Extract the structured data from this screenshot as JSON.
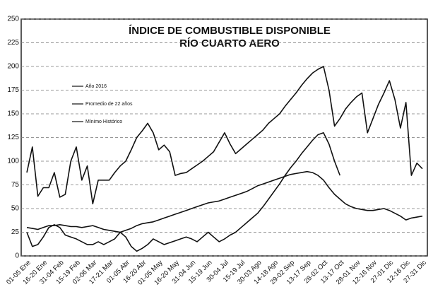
{
  "chart_data": {
    "type": "line",
    "title": "ÍNDICE DE COMBUSTIBLE DISPONIBLE",
    "subtitle": "RÍO CUARTO AERO",
    "categories": [
      "01-05 Ene",
      null,
      null,
      "16-20 Ene",
      null,
      null,
      "31-04 Feb",
      null,
      null,
      "15-19 Feb",
      null,
      null,
      "02-06 Mar",
      null,
      null,
      "17-21 Mar",
      null,
      null,
      "01-05 Abr",
      null,
      null,
      "16-20 Abr",
      null,
      null,
      "01-05 May",
      null,
      null,
      "16-20 May",
      null,
      null,
      "31-04 Jun",
      null,
      null,
      "15-19 Jun",
      null,
      null,
      "30-04 Jul",
      null,
      null,
      "15-19 Jul",
      null,
      null,
      "30-03 Ago",
      null,
      null,
      "14-18 Ago",
      null,
      null,
      "29-02 Sep",
      null,
      null,
      "13-17 Sep",
      null,
      null,
      "28-02 Oct",
      null,
      null,
      "13-17 Oct",
      null,
      null,
      "28-01 Nov",
      null,
      null,
      "12-16 Nov",
      null,
      null,
      "27-01 Dic",
      null,
      null,
      "12-16 Dic",
      null,
      null,
      "27-31 Dic"
    ],
    "series": [
      {
        "name": "Año 2016",
        "color": "#111111",
        "values": [
          88,
          115,
          63,
          72,
          72,
          88,
          62,
          65,
          100,
          115,
          80,
          95,
          55,
          80,
          80,
          80,
          88,
          95,
          100,
          112,
          125,
          132,
          140,
          130,
          112,
          117,
          110,
          85,
          87,
          88,
          92,
          96,
          100,
          105,
          110,
          120,
          130,
          118,
          108,
          113,
          118,
          123,
          128,
          133,
          140,
          145,
          150,
          158,
          165,
          172,
          180,
          187,
          193,
          197,
          200,
          175,
          137,
          145,
          155,
          162,
          168,
          172,
          130,
          145,
          160,
          172,
          185,
          165,
          135,
          162,
          85,
          98,
          92
        ]
      },
      {
        "name": "Promedio de 22 años",
        "color": "#111111",
        "values": [
          30,
          29,
          28,
          30,
          32,
          32,
          33,
          32,
          31,
          31,
          30,
          31,
          32,
          30,
          28,
          27,
          26,
          25,
          27,
          29,
          32,
          34,
          35,
          36,
          38,
          40,
          42,
          44,
          46,
          48,
          50,
          52,
          54,
          56,
          57,
          58,
          60,
          62,
          64,
          66,
          68,
          71,
          74,
          76,
          78,
          80,
          82,
          84,
          86,
          87,
          88,
          89,
          88,
          85,
          80,
          72,
          65,
          60,
          55,
          52,
          50,
          49,
          48,
          48,
          49,
          50,
          48,
          45,
          42,
          38,
          40,
          41,
          42
        ]
      },
      {
        "name": "Mínimo Histórico",
        "color": "#111111",
        "values": [
          25,
          10,
          12,
          20,
          30,
          33,
          30,
          22,
          20,
          18,
          15,
          12,
          12,
          15,
          12,
          15,
          18,
          25,
          20,
          10,
          5,
          8,
          12,
          18,
          15,
          12,
          14,
          16,
          18,
          20,
          18,
          15,
          20,
          25,
          20,
          15,
          18,
          22,
          25,
          30,
          35,
          40,
          45,
          52,
          60,
          68,
          76,
          85,
          93,
          100,
          108,
          115,
          122,
          128,
          130,
          118,
          100,
          85,
          null,
          null,
          null,
          null,
          null,
          null,
          null,
          null,
          null,
          null,
          null,
          null,
          null,
          null,
          null
        ]
      }
    ],
    "ylim": [
      0,
      250
    ],
    "yticks": [
      0,
      25,
      50,
      75,
      100,
      125,
      150,
      175,
      200,
      225,
      250
    ],
    "grid": true
  }
}
